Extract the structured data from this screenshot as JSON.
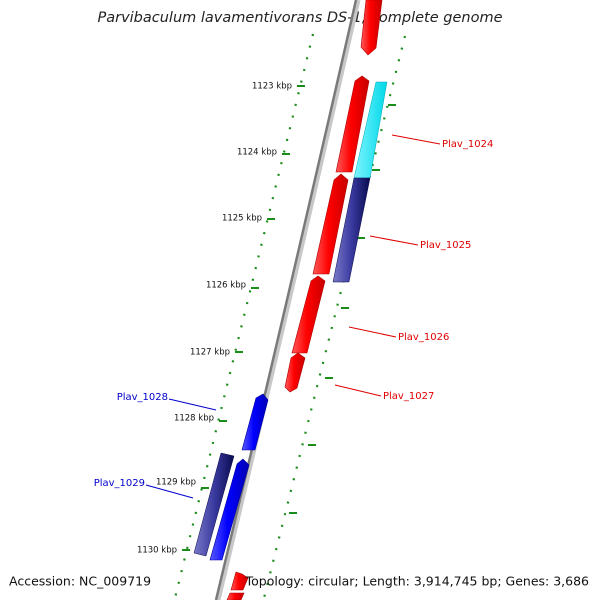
{
  "title": "Parvibaculum lavamentivorans DS-1, complete genome",
  "footer": {
    "accession": "Accession: NC_009719",
    "topology": "Topology: circular; Length: 3,914,745 bp; Genes: 3,686"
  },
  "ticks": [
    "1123 kbp",
    "1124 kbp",
    "1125 kbp",
    "1126 kbp",
    "1127 kbp",
    "1128 kbp",
    "1129 kbp",
    "1130 kbp"
  ],
  "genes": [
    {
      "label": "Plav_1024",
      "color": "#e00000",
      "strand": "forward"
    },
    {
      "label": "Plav_1025",
      "color": "#e00000",
      "strand": "forward"
    },
    {
      "label": "Plav_1026",
      "color": "#e00000",
      "strand": "forward"
    },
    {
      "label": "Plav_1027",
      "color": "#e00000",
      "strand": "forward"
    },
    {
      "label": "Plav_1028",
      "color": "#0000cc",
      "strand": "reverse"
    },
    {
      "label": "Plav_1029",
      "color": "#0000cc",
      "strand": "reverse"
    }
  ],
  "colors": {
    "forward_gene": "#ff0000",
    "reverse_gene": "#0000ff",
    "cds_forward": "#00e5ee",
    "cds_reverse": "#1a1a80",
    "backbone": "#888888",
    "dots": "#1a8c1a"
  }
}
